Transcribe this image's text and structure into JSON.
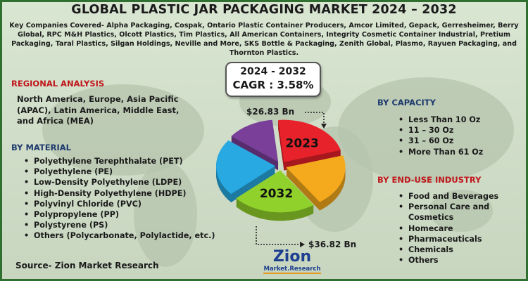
{
  "title": "GLOBAL PLASTIC JAR PACKAGING MARKET 2024 – 2032",
  "companies_text": "Key Companies Covered- Alpha Packaging, Cospak, Ontario Plastic Container Producers, Amcor Limited, Gepack, Gerresheimer, Berry Global, RPC M&H Plastics, Olcott Plastics, Tim Plastics, All American Containers, Integrity Cosmetic Container Industrial, Pretium Packaging, Taral Plastics, Silgan Holdings, Neville and More, SKS Bottle & Packaging, Zenith Global, Plasmo, Rayuen Packaging, and Thornton Plastics.",
  "regional": {
    "heading": "REGIONAL ANALYSIS",
    "text": "North America, Europe, Asia Pacific (APAC), Latin America, Middle East, and Africa (MEA)"
  },
  "material": {
    "heading": "BY MATERIAL",
    "items": [
      "Polyethylene Terephthalate (PET)",
      "Polyethylene (PE)",
      "Low-Density Polyethylene (LDPE)",
      "High-Density Polyethylene (HDPE)",
      "Polyvinyl Chloride (PVC)",
      "Polypropylene (PP)",
      "Polystyrene (PS)",
      "Others (Polycarbonate, Polylactide, etc.)"
    ]
  },
  "capacity": {
    "heading": "BY CAPACITY",
    "items": [
      "Less Than 10 Oz",
      "11 – 30 Oz",
      "31 – 60 Oz",
      "More Than 61 Oz"
    ]
  },
  "end_use": {
    "heading": "BY END-USE INDUSTRY",
    "items": [
      "Food and Beverages",
      "Personal Care and Cosmetics",
      "Homecare",
      "Pharmaceuticals",
      "Chemicals",
      "Others"
    ]
  },
  "cagr": {
    "period": "2024 - 2032",
    "value": "CAGR : 3.58%"
  },
  "source": "Source- Zion Market Research",
  "logo": {
    "main": "Zion",
    "sub": "Market.Research"
  },
  "colors": {
    "title": "#1a1a1a",
    "section_red": "#c0161b",
    "section_navy": "#1f3b6e",
    "frame": "#2f6f2f"
  },
  "chart_data": {
    "type": "pie",
    "style": "3d-exploded",
    "title": "",
    "slices": [
      {
        "label": "2023",
        "value": 22,
        "color": "#e8222b"
      },
      {
        "label": "",
        "value": 20,
        "color": "#f5a91d"
      },
      {
        "label": "2032",
        "value": 23,
        "color": "#90d12b"
      },
      {
        "label": "",
        "value": 22,
        "color": "#28a9e1"
      },
      {
        "label": "",
        "value": 13,
        "color": "#7a3f98"
      }
    ],
    "annotations": [
      {
        "text": "$26.83 Bn",
        "year": "2023",
        "value": 26.83,
        "unit": "Bn"
      },
      {
        "text": "$36.82 Bn",
        "year": "2032",
        "value": 36.82,
        "unit": "Bn"
      }
    ]
  }
}
